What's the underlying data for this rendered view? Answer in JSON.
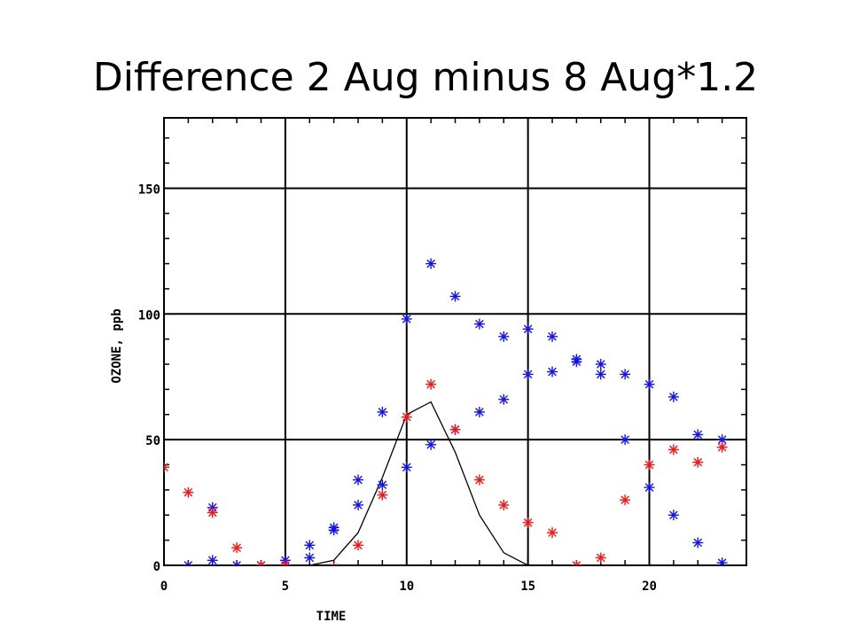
{
  "slide": {
    "title": "Difference 2 Aug minus 8 Aug*1.2"
  },
  "colors": {
    "series_blue": "#1010ff",
    "series_red": "#ff1010",
    "line": "#000000",
    "grid": "#000000"
  },
  "chart_data": {
    "type": "scatter",
    "title": "",
    "xlabel": "TIME",
    "ylabel": "OZONE, ppb",
    "xlim": [
      0,
      24
    ],
    "ylim": [
      0,
      178
    ],
    "xticks": [
      0,
      5,
      10,
      15,
      20
    ],
    "yticks": [
      0,
      50,
      100,
      150
    ],
    "grid": true,
    "legend": "none",
    "series": [
      {
        "color": "blue",
        "marker": "asterisk",
        "points": [
          [
            1,
            0
          ],
          [
            2,
            2
          ],
          [
            2,
            23
          ],
          [
            3,
            0
          ],
          [
            4,
            0
          ],
          [
            5,
            2
          ],
          [
            6,
            3
          ],
          [
            6,
            8
          ],
          [
            7,
            14
          ],
          [
            7,
            15
          ],
          [
            8,
            24
          ],
          [
            8,
            34
          ],
          [
            9,
            32
          ],
          [
            9,
            61
          ],
          [
            10,
            39
          ],
          [
            10,
            98
          ],
          [
            11,
            48
          ],
          [
            11,
            120
          ],
          [
            12,
            54
          ],
          [
            12,
            107
          ],
          [
            13,
            61
          ],
          [
            13,
            96
          ],
          [
            14,
            66
          ],
          [
            14,
            91
          ],
          [
            15,
            76
          ],
          [
            15,
            94
          ],
          [
            16,
            77
          ],
          [
            16,
            91
          ],
          [
            17,
            81
          ],
          [
            17,
            82
          ],
          [
            18,
            76
          ],
          [
            18,
            80
          ],
          [
            19,
            50
          ],
          [
            19,
            76
          ],
          [
            20,
            31
          ],
          [
            20,
            72
          ],
          [
            21,
            20
          ],
          [
            21,
            67
          ],
          [
            22,
            9
          ],
          [
            22,
            52
          ],
          [
            23,
            1
          ],
          [
            23,
            50
          ]
        ]
      },
      {
        "color": "red",
        "marker": "asterisk",
        "points": [
          [
            0,
            39
          ],
          [
            1,
            29
          ],
          [
            2,
            21
          ],
          [
            3,
            7
          ],
          [
            4,
            0
          ],
          [
            5,
            0
          ],
          [
            7,
            -1
          ],
          [
            8,
            8
          ],
          [
            9,
            28
          ],
          [
            10,
            59
          ],
          [
            11,
            72
          ],
          [
            12,
            54
          ],
          [
            13,
            34
          ],
          [
            14,
            24
          ],
          [
            15,
            17
          ],
          [
            16,
            13
          ],
          [
            17,
            0
          ],
          [
            18,
            3
          ],
          [
            19,
            26
          ],
          [
            20,
            40
          ],
          [
            21,
            46
          ],
          [
            22,
            41
          ],
          [
            23,
            47
          ]
        ]
      },
      {
        "color": "black",
        "marker": "line",
        "points": [
          [
            6,
            0
          ],
          [
            7,
            2
          ],
          [
            8,
            13
          ],
          [
            9,
            35
          ],
          [
            10,
            60
          ],
          [
            11,
            65
          ],
          [
            12,
            45
          ],
          [
            13,
            20
          ],
          [
            14,
            5
          ],
          [
            15,
            0
          ],
          [
            15.5,
            0
          ]
        ]
      }
    ]
  }
}
